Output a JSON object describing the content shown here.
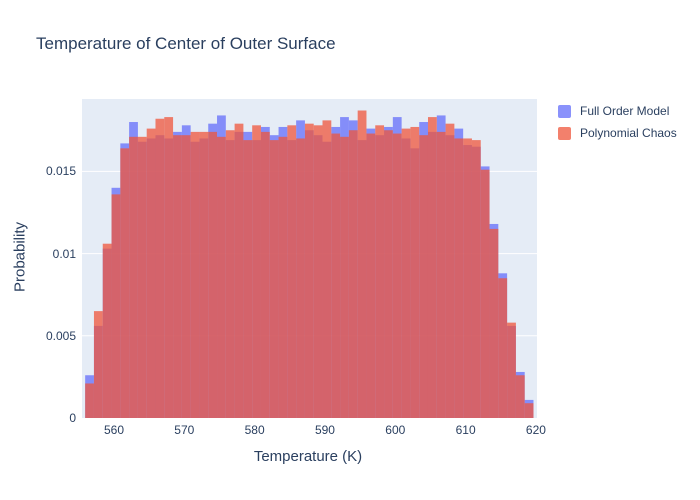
{
  "figure": {
    "background": "#ffffff",
    "plot_background": "#e5ecf6",
    "gridline_color": "#ffffff",
    "text_color": "#2a3f5f"
  },
  "chart_data": {
    "type": "histogram",
    "mode": "overlay",
    "title": "Temperature of Center of Outer Surface",
    "xlabel": "Temperature (K)",
    "ylabel": "Probability",
    "x_range": [
      555.45,
      620.15
    ],
    "y_range": [
      0,
      0.0194
    ],
    "x_ticks": [
      "560",
      "570",
      "580",
      "590",
      "600",
      "610",
      "620"
    ],
    "x_tick_values": [
      560,
      570,
      580,
      590,
      600,
      610,
      620
    ],
    "y_ticks": [
      "0",
      "0.005",
      "0.01",
      "0.015"
    ],
    "y_tick_values": [
      0,
      0.005,
      0.01,
      0.015
    ],
    "grid": "horizontal-only",
    "legend_position": "top-right-outside",
    "bin_start": 555.9,
    "bin_width": 1.25,
    "series": [
      {
        "name": "Full Order Model",
        "color": "#636efa",
        "opacity": 0.75,
        "values": [
          0.0026,
          0.0056,
          0.0103,
          0.014,
          0.0167,
          0.018,
          0.0168,
          0.017,
          0.0172,
          0.017,
          0.0174,
          0.0178,
          0.0168,
          0.017,
          0.0179,
          0.0184,
          0.0169,
          0.0174,
          0.0174,
          0.0169,
          0.0177,
          0.0172,
          0.0177,
          0.0169,
          0.0181,
          0.0175,
          0.0172,
          0.0168,
          0.0177,
          0.0183,
          0.0181,
          0.0169,
          0.0176,
          0.0172,
          0.0177,
          0.0183,
          0.017,
          0.0164,
          0.018,
          0.0174,
          0.0184,
          0.0172,
          0.0176,
          0.0166,
          0.0165,
          0.0153,
          0.0118,
          0.0088,
          0.0056,
          0.0028,
          0.0011
        ]
      },
      {
        "name": "Polynomial Chaos",
        "color": "#ef553b",
        "opacity": 0.75,
        "values": [
          0.0021,
          0.0065,
          0.0106,
          0.0136,
          0.0164,
          0.0171,
          0.0171,
          0.0176,
          0.0182,
          0.0183,
          0.0172,
          0.0172,
          0.0174,
          0.0174,
          0.0174,
          0.0171,
          0.0175,
          0.0179,
          0.0169,
          0.0178,
          0.0174,
          0.0169,
          0.0171,
          0.0178,
          0.017,
          0.0179,
          0.0178,
          0.0181,
          0.0173,
          0.0171,
          0.0175,
          0.0187,
          0.0173,
          0.0178,
          0.0175,
          0.0173,
          0.0176,
          0.0177,
          0.0172,
          0.0183,
          0.0174,
          0.0179,
          0.017,
          0.017,
          0.0169,
          0.0151,
          0.0115,
          0.0085,
          0.0058,
          0.0026,
          0.0009
        ]
      }
    ]
  }
}
